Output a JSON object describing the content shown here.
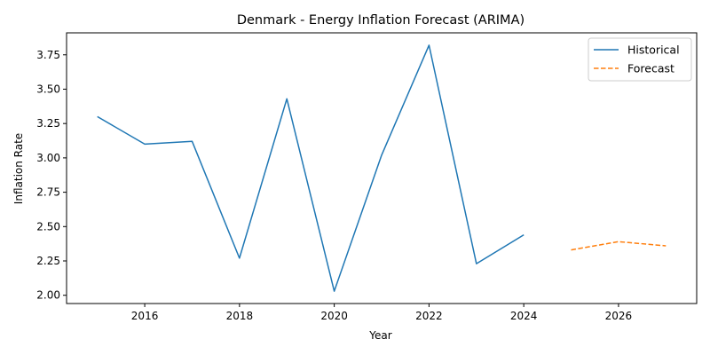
{
  "chart_data": {
    "type": "line",
    "title": "Denmark - Energy Inflation Forecast (ARIMA)",
    "xlabel": "Year",
    "ylabel": "Inflation Rate",
    "xlim": [
      2014.35,
      2027.65
    ],
    "ylim": [
      1.94,
      3.91
    ],
    "xticks": [
      2016,
      2018,
      2020,
      2022,
      2024,
      2026
    ],
    "yticks": [
      2.0,
      2.25,
      2.5,
      2.75,
      3.0,
      3.25,
      3.5,
      3.75
    ],
    "grid": false,
    "legend_position": "top-right",
    "series": [
      {
        "name": "Historical",
        "color": "#1f77b4",
        "style": "solid",
        "x": [
          2015,
          2016,
          2017,
          2018,
          2019,
          2020,
          2021,
          2022,
          2023,
          2024
        ],
        "y": [
          3.3,
          3.1,
          3.12,
          2.27,
          3.43,
          2.03,
          3.02,
          3.82,
          2.23,
          2.44
        ]
      },
      {
        "name": "Forecast",
        "color": "#ff7f0e",
        "style": "dashed",
        "x": [
          2025,
          2026,
          2027
        ],
        "y": [
          2.33,
          2.39,
          2.36
        ]
      }
    ]
  }
}
